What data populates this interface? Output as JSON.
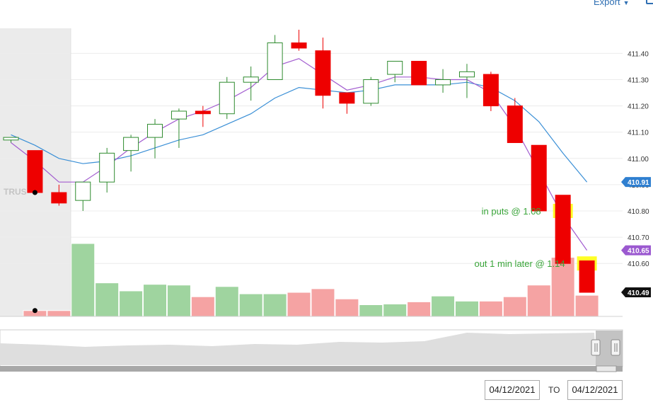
{
  "header": {
    "export_label": "Export"
  },
  "date_range": {
    "from": "04/12/2021",
    "to_label": "TO",
    "to": "04/12/2021"
  },
  "chart_data": {
    "type": "candlestick",
    "ylim": [
      410.49,
      411.49
    ],
    "y_ticks": [
      "411.40",
      "411.30",
      "411.20",
      "411.10",
      "411.00",
      "410.90",
      "410.80",
      "410.70",
      "410.60"
    ],
    "price_badges": [
      {
        "label": "410.91",
        "value": 410.91,
        "color": "#2f7fd0"
      },
      {
        "label": "410.65",
        "value": 410.65,
        "color": "#9b59d0"
      },
      {
        "label": "410.49",
        "value": 410.49,
        "color": "#111111"
      }
    ],
    "watermark": "TRUS",
    "candles": [
      {
        "o": 411.07,
        "h": 411.08,
        "l": 411.06,
        "c": 411.08
      },
      {
        "o": 411.03,
        "h": 411.03,
        "l": 410.87,
        "c": 410.87
      },
      {
        "o": 410.87,
        "h": 410.9,
        "l": 410.82,
        "c": 410.83
      },
      {
        "o": 410.84,
        "h": 410.91,
        "l": 410.8,
        "c": 410.91
      },
      {
        "o": 410.91,
        "h": 411.04,
        "l": 410.87,
        "c": 411.02
      },
      {
        "o": 411.03,
        "h": 411.09,
        "l": 410.95,
        "c": 411.08
      },
      {
        "o": 411.08,
        "h": 411.15,
        "l": 411.0,
        "c": 411.13
      },
      {
        "o": 411.15,
        "h": 411.19,
        "l": 411.04,
        "c": 411.18
      },
      {
        "o": 411.18,
        "h": 411.2,
        "l": 411.12,
        "c": 411.17
      },
      {
        "o": 411.17,
        "h": 411.31,
        "l": 411.15,
        "c": 411.29
      },
      {
        "o": 411.29,
        "h": 411.35,
        "l": 411.22,
        "c": 411.31
      },
      {
        "o": 411.3,
        "h": 411.47,
        "l": 411.3,
        "c": 411.44
      },
      {
        "o": 411.44,
        "h": 411.49,
        "l": 411.41,
        "c": 411.42
      },
      {
        "o": 411.41,
        "h": 411.46,
        "l": 411.19,
        "c": 411.24
      },
      {
        "o": 411.25,
        "h": 411.25,
        "l": 411.17,
        "c": 411.21
      },
      {
        "o": 411.21,
        "h": 411.31,
        "l": 411.2,
        "c": 411.3
      },
      {
        "o": 411.32,
        "h": 411.37,
        "l": 411.29,
        "c": 411.37
      },
      {
        "o": 411.37,
        "h": 411.37,
        "l": 411.28,
        "c": 411.28
      },
      {
        "o": 411.28,
        "h": 411.34,
        "l": 411.25,
        "c": 411.3
      },
      {
        "o": 411.31,
        "h": 411.36,
        "l": 411.23,
        "c": 411.33
      },
      {
        "o": 411.32,
        "h": 411.33,
        "l": 411.18,
        "c": 411.2
      },
      {
        "o": 411.2,
        "h": 411.23,
        "l": 411.06,
        "c": 411.06
      },
      {
        "o": 411.05,
        "h": 411.05,
        "l": 410.8,
        "c": 410.8
      },
      {
        "o": 410.86,
        "h": 410.86,
        "l": 410.6,
        "c": 410.6
      },
      {
        "o": 410.61,
        "h": 410.61,
        "l": 410.49,
        "c": 410.49
      }
    ],
    "volume": [
      0,
      0.08,
      0.08,
      1.0,
      0.46,
      0.35,
      0.44,
      0.43,
      0.27,
      0.41,
      0.31,
      0.31,
      0.33,
      0.38,
      0.24,
      0.16,
      0.17,
      0.2,
      0.28,
      0.21,
      0.21,
      0.27,
      0.43,
      0.81,
      0.29
    ],
    "sma_purple": [
      411.06,
      410.99,
      410.91,
      410.91,
      410.97,
      411.04,
      411.1,
      411.15,
      411.18,
      411.22,
      411.27,
      411.35,
      411.38,
      411.32,
      411.26,
      411.28,
      411.31,
      411.31,
      411.3,
      411.3,
      411.25,
      411.12,
      410.95,
      410.78,
      410.65
    ],
    "sma_blue": [
      411.09,
      411.05,
      411.0,
      410.98,
      410.99,
      411.01,
      411.04,
      411.07,
      411.09,
      411.13,
      411.17,
      411.23,
      411.27,
      411.26,
      411.25,
      411.26,
      411.28,
      411.28,
      411.28,
      411.29,
      411.27,
      411.22,
      411.14,
      411.02,
      410.91
    ],
    "markers": [
      {
        "index": 1,
        "value": 410.87
      },
      {
        "index": 1,
        "volume": 0.08
      }
    ],
    "highlights": [
      {
        "index": 23,
        "value": 410.8,
        "color": "#ffff00"
      },
      {
        "index": 24,
        "value": 410.6,
        "color": "#ffff00"
      }
    ],
    "annotations": [
      {
        "text": "in puts @ 1.08",
        "index": 23,
        "value": 410.8
      },
      {
        "text": "out 1 min later @ 1.14",
        "index": 24,
        "value": 410.6
      }
    ]
  }
}
